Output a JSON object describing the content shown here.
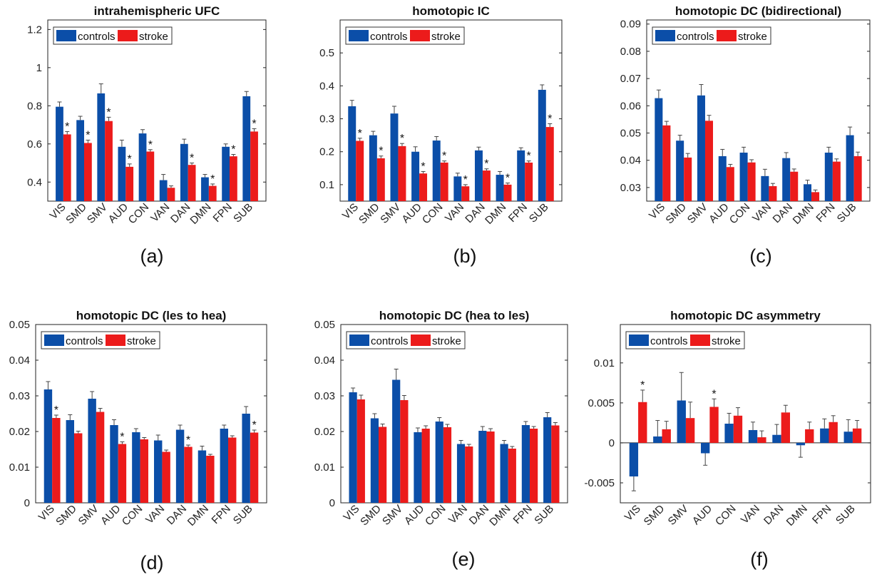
{
  "colors": {
    "controls": "#0b4ea8",
    "stroke": "#ec1b1b",
    "axis": "#222222",
    "errorbar": "#444444"
  },
  "legend": {
    "position": "top-left"
  },
  "chart_data": [
    {
      "type": "bar",
      "panel_label": "(a)",
      "title": "intrahemispheric UFC",
      "categories": [
        "VIS",
        "SMD",
        "SMV",
        "AUD",
        "CON",
        "VAN",
        "DAN",
        "DMN",
        "FPN",
        "SUB"
      ],
      "series": [
        {
          "name": "controls",
          "values": [
            0.795,
            0.725,
            0.865,
            0.585,
            0.655,
            0.41,
            0.6,
            0.425,
            0.585,
            0.85
          ],
          "errors": [
            0.025,
            0.02,
            0.05,
            0.035,
            0.02,
            0.03,
            0.025,
            0.015,
            0.015,
            0.025
          ]
        },
        {
          "name": "stroke",
          "values": [
            0.65,
            0.605,
            0.72,
            0.48,
            0.56,
            0.37,
            0.49,
            0.38,
            0.535,
            0.665
          ],
          "errors": [
            0.015,
            0.015,
            0.02,
            0.015,
            0.01,
            0.01,
            0.01,
            0.01,
            0.01,
            0.015
          ]
        }
      ],
      "significant": [
        true,
        true,
        true,
        true,
        true,
        false,
        true,
        true,
        true,
        true
      ],
      "ylim": [
        0.3,
        1.25
      ],
      "yticks": [
        0.4,
        0.6,
        0.8,
        1,
        1.2
      ],
      "ytick_labels": [
        "0.4",
        "0.6",
        "0.8",
        "1",
        "1.2"
      ],
      "grid": false
    },
    {
      "type": "bar",
      "panel_label": "(b)",
      "title": "homotopic IC",
      "categories": [
        "VIS",
        "SMD",
        "SMV",
        "AUD",
        "CON",
        "VAN",
        "DAN",
        "DMN",
        "FPN",
        "SUB"
      ],
      "series": [
        {
          "name": "controls",
          "values": [
            0.338,
            0.25,
            0.316,
            0.2,
            0.234,
            0.125,
            0.204,
            0.13,
            0.204,
            0.388
          ],
          "errors": [
            0.018,
            0.012,
            0.022,
            0.015,
            0.012,
            0.01,
            0.01,
            0.01,
            0.008,
            0.015
          ]
        },
        {
          "name": "stroke",
          "values": [
            0.233,
            0.18,
            0.217,
            0.134,
            0.167,
            0.095,
            0.143,
            0.1,
            0.167,
            0.275
          ],
          "errors": [
            0.008,
            0.007,
            0.008,
            0.006,
            0.005,
            0.005,
            0.005,
            0.005,
            0.005,
            0.01
          ]
        }
      ],
      "significant": [
        true,
        true,
        true,
        true,
        true,
        true,
        true,
        true,
        true,
        true
      ],
      "ylim": [
        0.05,
        0.6
      ],
      "yticks": [
        0.1,
        0.2,
        0.3,
        0.4,
        0.5
      ],
      "ytick_labels": [
        "0.1",
        "0.2",
        "0.3",
        "0.4",
        "0.5"
      ],
      "grid": false
    },
    {
      "type": "bar",
      "panel_label": "(c)",
      "title": "homotopic DC (bidirectional)",
      "categories": [
        "VIS",
        "SMD",
        "SMV",
        "AUD",
        "CON",
        "VAN",
        "DAN",
        "DMN",
        "FPN",
        "SUB"
      ],
      "series": [
        {
          "name": "controls",
          "values": [
            0.0628,
            0.0472,
            0.0638,
            0.0415,
            0.0428,
            0.0342,
            0.0408,
            0.0312,
            0.0428,
            0.0492
          ],
          "errors": [
            0.003,
            0.002,
            0.004,
            0.0025,
            0.002,
            0.0025,
            0.002,
            0.0015,
            0.002,
            0.003
          ]
        },
        {
          "name": "stroke",
          "values": [
            0.0528,
            0.041,
            0.0545,
            0.0375,
            0.0392,
            0.0305,
            0.0358,
            0.0283,
            0.0395,
            0.0415
          ],
          "errors": [
            0.0015,
            0.0015,
            0.002,
            0.001,
            0.001,
            0.001,
            0.001,
            0.0008,
            0.001,
            0.0015
          ]
        }
      ],
      "significant": [
        false,
        false,
        false,
        false,
        false,
        false,
        false,
        false,
        false,
        false
      ],
      "ylim": [
        0.025,
        0.0915
      ],
      "yticks": [
        0.03,
        0.04,
        0.05,
        0.06,
        0.07,
        0.08,
        0.09
      ],
      "ytick_labels": [
        "0.03",
        "0.04",
        "0.05",
        "0.06",
        "0.07",
        "0.08",
        "0.09"
      ],
      "grid": false
    },
    {
      "type": "bar",
      "panel_label": "(d)",
      "title": "homotopic DC (les to hea)",
      "categories": [
        "VIS",
        "SMD",
        "SMV",
        "AUD",
        "CON",
        "VAN",
        "DAN",
        "DMN",
        "FPN",
        "SUB"
      ],
      "series": [
        {
          "name": "controls",
          "values": [
            0.0318,
            0.0232,
            0.0292,
            0.0218,
            0.0198,
            0.0175,
            0.0205,
            0.0147,
            0.0208,
            0.025
          ],
          "errors": [
            0.0022,
            0.0015,
            0.002,
            0.0015,
            0.001,
            0.0015,
            0.0013,
            0.0012,
            0.001,
            0.002
          ]
        },
        {
          "name": "stroke",
          "values": [
            0.0238,
            0.0195,
            0.0255,
            0.0165,
            0.0178,
            0.0143,
            0.0157,
            0.0132,
            0.0183,
            0.0197
          ],
          "errors": [
            0.0008,
            0.0006,
            0.001,
            0.0006,
            0.0005,
            0.0005,
            0.0005,
            0.0004,
            0.0005,
            0.0007
          ]
        }
      ],
      "significant": [
        true,
        false,
        false,
        true,
        false,
        false,
        true,
        false,
        false,
        true
      ],
      "ylim": [
        0,
        0.05
      ],
      "yticks": [
        0,
        0.01,
        0.02,
        0.03,
        0.04,
        0.05
      ],
      "ytick_labels": [
        "0",
        "0.01",
        "0.02",
        "0.03",
        "0.04",
        "0.05"
      ],
      "grid": false
    },
    {
      "type": "bar",
      "panel_label": "(e)",
      "title": "homotopic DC (hea to les)",
      "categories": [
        "VIS",
        "SMD",
        "SMV",
        "AUD",
        "CON",
        "VAN",
        "DAN",
        "DMN",
        "FPN",
        "SUB"
      ],
      "series": [
        {
          "name": "controls",
          "values": [
            0.031,
            0.0237,
            0.0345,
            0.0198,
            0.0228,
            0.0165,
            0.0202,
            0.0165,
            0.0218,
            0.024
          ],
          "errors": [
            0.0012,
            0.0013,
            0.003,
            0.0012,
            0.0011,
            0.001,
            0.0012,
            0.001,
            0.001,
            0.0013
          ]
        },
        {
          "name": "stroke",
          "values": [
            0.029,
            0.0213,
            0.0288,
            0.0208,
            0.0212,
            0.0158,
            0.02,
            0.0152,
            0.0208,
            0.0217
          ],
          "errors": [
            0.0012,
            0.0008,
            0.0013,
            0.0008,
            0.0008,
            0.0006,
            0.0008,
            0.0006,
            0.0006,
            0.0008
          ]
        }
      ],
      "significant": [
        false,
        false,
        false,
        false,
        false,
        false,
        false,
        false,
        false,
        false
      ],
      "ylim": [
        0,
        0.05
      ],
      "yticks": [
        0,
        0.01,
        0.02,
        0.03,
        0.04,
        0.05
      ],
      "ytick_labels": [
        "0",
        "0.01",
        "0.02",
        "0.03",
        "0.04",
        "0.05"
      ],
      "grid": false
    },
    {
      "type": "bar",
      "panel_label": "(f)",
      "title": "homotopic DC asymmetry",
      "categories": [
        "VIS",
        "SMD",
        "SMV",
        "AUD",
        "CON",
        "VAN",
        "DAN",
        "DMN",
        "FPN",
        "SUB"
      ],
      "series": [
        {
          "name": "controls",
          "values": [
            -0.0042,
            0.0008,
            0.0053,
            -0.0013,
            0.0024,
            0.0016,
            0.001,
            -0.0003,
            0.0018,
            0.0014
          ],
          "errors": [
            0.0018,
            0.002,
            0.0035,
            0.0015,
            0.0013,
            0.001,
            0.0013,
            0.0015,
            0.0012,
            0.0015
          ]
        },
        {
          "name": "stroke",
          "values": [
            0.0051,
            0.0017,
            0.0031,
            0.0045,
            0.0034,
            0.0007,
            0.0038,
            0.0017,
            0.0026,
            0.0018
          ],
          "errors": [
            0.0015,
            0.001,
            0.002,
            0.001,
            0.001,
            0.0008,
            0.0009,
            0.0009,
            0.0008,
            0.001
          ]
        }
      ],
      "significant": [
        true,
        false,
        false,
        true,
        false,
        false,
        false,
        false,
        false,
        false
      ],
      "ylim": [
        -0.0075,
        0.0148
      ],
      "yticks": [
        -0.005,
        0,
        0.005,
        0.01
      ],
      "ytick_labels": [
        "-0.005",
        "0",
        "0.005",
        "0.01"
      ],
      "grid": false,
      "zero_line": true
    }
  ]
}
